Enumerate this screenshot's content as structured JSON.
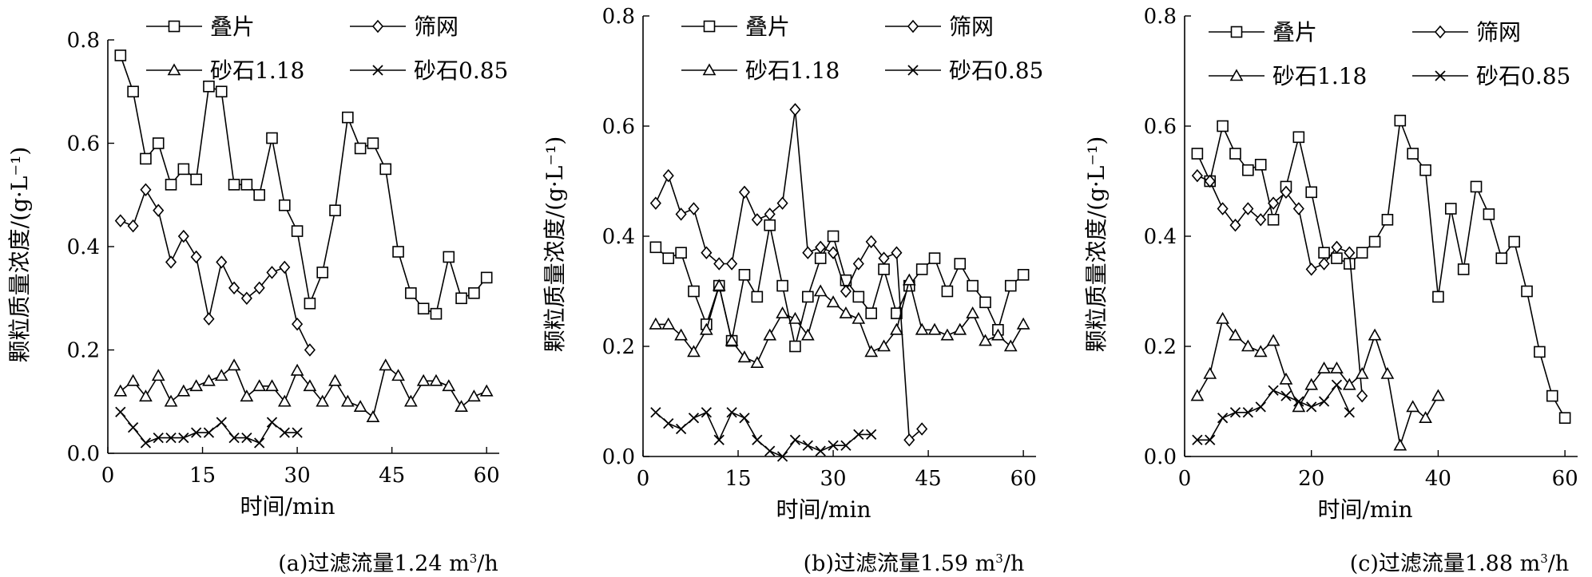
{
  "figure": {
    "captions": [
      {
        "prefix": "(a)过滤流量1.24 m",
        "sup": "3",
        "suffix": "/h"
      },
      {
        "prefix": "(b)过滤流量1.59 m",
        "sup": "3",
        "suffix": "/h"
      },
      {
        "prefix": "(c)过滤流量1.88 m",
        "sup": "3",
        "suffix": "/h"
      }
    ]
  },
  "chart_data": [
    {
      "type": "line",
      "xlabel": "时间/min",
      "ylabel": "颗粒质量浓度/(g·L⁻¹)",
      "xlim": [
        0,
        62
      ],
      "ylim": [
        0,
        0.8
      ],
      "xticks": [
        0,
        15,
        30,
        45,
        60
      ],
      "yticks": [
        0.0,
        0.2,
        0.4,
        0.6,
        0.8
      ],
      "legend_position": "top",
      "series": [
        {
          "name": "叠片",
          "marker": "square",
          "x": [
            2,
            4,
            6,
            8,
            10,
            12,
            14,
            16,
            18,
            20,
            22,
            24,
            26,
            28,
            30,
            32,
            34,
            36,
            38,
            40,
            42,
            44,
            46,
            48,
            50,
            52,
            54,
            56,
            58,
            60
          ],
          "y": [
            0.77,
            0.7,
            0.57,
            0.6,
            0.52,
            0.55,
            0.53,
            0.71,
            0.7,
            0.52,
            0.52,
            0.5,
            0.61,
            0.48,
            0.43,
            0.29,
            0.35,
            0.47,
            0.65,
            0.59,
            0.6,
            0.55,
            0.39,
            0.31,
            0.28,
            0.27,
            0.38,
            0.3,
            0.31,
            0.34
          ]
        },
        {
          "name": "筛网",
          "marker": "diamond",
          "x": [
            2,
            4,
            6,
            8,
            10,
            12,
            14,
            16,
            18,
            20,
            22,
            24,
            26,
            28,
            30,
            32
          ],
          "y": [
            0.45,
            0.44,
            0.51,
            0.47,
            0.37,
            0.42,
            0.38,
            0.26,
            0.37,
            0.32,
            0.3,
            0.32,
            0.35,
            0.36,
            0.25,
            0.2
          ]
        },
        {
          "name": "砂石1.18",
          "marker": "triangle",
          "x": [
            2,
            4,
            6,
            8,
            10,
            12,
            14,
            16,
            18,
            20,
            22,
            24,
            26,
            28,
            30,
            32,
            34,
            36,
            38,
            40,
            42,
            44,
            46,
            48,
            50,
            52,
            54,
            56,
            58,
            60
          ],
          "y": [
            0.12,
            0.14,
            0.11,
            0.15,
            0.1,
            0.12,
            0.13,
            0.14,
            0.15,
            0.17,
            0.11,
            0.13,
            0.13,
            0.1,
            0.16,
            0.13,
            0.1,
            0.14,
            0.1,
            0.09,
            0.07,
            0.17,
            0.15,
            0.1,
            0.14,
            0.14,
            0.13,
            0.09,
            0.11,
            0.12
          ]
        },
        {
          "name": "砂石0.85",
          "marker": "x",
          "x": [
            2,
            4,
            6,
            8,
            10,
            12,
            14,
            16,
            18,
            20,
            22,
            24,
            26,
            28,
            30
          ],
          "y": [
            0.08,
            0.05,
            0.02,
            0.03,
            0.03,
            0.03,
            0.04,
            0.04,
            0.06,
            0.03,
            0.03,
            0.02,
            0.06,
            0.04,
            0.04
          ]
        }
      ]
    },
    {
      "type": "line",
      "xlabel": "时间/min",
      "ylabel": "颗粒质量浓度/(g·L⁻¹)",
      "xlim": [
        0,
        62
      ],
      "ylim": [
        0,
        0.8
      ],
      "xticks": [
        0,
        15,
        30,
        45,
        60
      ],
      "yticks": [
        0.0,
        0.2,
        0.4,
        0.6,
        0.8
      ],
      "legend_position": "top",
      "series": [
        {
          "name": "叠片",
          "marker": "square",
          "x": [
            2,
            4,
            6,
            8,
            10,
            12,
            14,
            16,
            18,
            20,
            22,
            24,
            26,
            28,
            30,
            32,
            34,
            36,
            38,
            40,
            42,
            44,
            46,
            48,
            50,
            52,
            54,
            56,
            58,
            60
          ],
          "y": [
            0.38,
            0.36,
            0.37,
            0.3,
            0.24,
            0.31,
            0.21,
            0.33,
            0.29,
            0.42,
            0.31,
            0.2,
            0.29,
            0.36,
            0.4,
            0.32,
            0.29,
            0.26,
            0.34,
            0.26,
            0.31,
            0.34,
            0.36,
            0.3,
            0.35,
            0.31,
            0.28,
            0.23,
            0.31,
            0.33
          ]
        },
        {
          "name": "筛网",
          "marker": "diamond",
          "x": [
            2,
            4,
            6,
            8,
            10,
            12,
            14,
            16,
            18,
            20,
            22,
            24,
            26,
            28,
            30,
            32,
            34,
            36,
            38,
            40,
            42,
            44
          ],
          "y": [
            0.46,
            0.51,
            0.44,
            0.45,
            0.37,
            0.35,
            0.35,
            0.48,
            0.43,
            0.44,
            0.46,
            0.63,
            0.37,
            0.38,
            0.37,
            0.3,
            0.35,
            0.39,
            0.36,
            0.37,
            0.03,
            0.05
          ]
        },
        {
          "name": "砂石1.18",
          "marker": "triangle",
          "x": [
            2,
            4,
            6,
            8,
            10,
            12,
            14,
            16,
            18,
            20,
            22,
            24,
            26,
            28,
            30,
            32,
            34,
            36,
            38,
            40,
            42,
            44,
            46,
            48,
            50,
            52,
            54,
            56,
            58,
            60
          ],
          "y": [
            0.24,
            0.24,
            0.22,
            0.19,
            0.23,
            0.31,
            0.21,
            0.18,
            0.17,
            0.22,
            0.26,
            0.25,
            0.22,
            0.3,
            0.28,
            0.26,
            0.25,
            0.19,
            0.2,
            0.23,
            0.32,
            0.23,
            0.23,
            0.22,
            0.23,
            0.26,
            0.21,
            0.22,
            0.2,
            0.24
          ]
        },
        {
          "name": "砂石0.85",
          "marker": "x",
          "x": [
            2,
            4,
            6,
            8,
            10,
            12,
            14,
            16,
            18,
            20,
            22,
            24,
            26,
            28,
            30,
            32,
            34,
            36
          ],
          "y": [
            0.08,
            0.06,
            0.05,
            0.07,
            0.08,
            0.03,
            0.08,
            0.07,
            0.03,
            0.01,
            0.0,
            0.03,
            0.02,
            0.01,
            0.02,
            0.02,
            0.04,
            0.04
          ]
        }
      ]
    },
    {
      "type": "line",
      "xlabel": "时间/min",
      "ylabel": "颗粒质量浓度/(g·L⁻¹)",
      "xlim": [
        0,
        62
      ],
      "ylim": [
        0,
        0.8
      ],
      "xticks": [
        0,
        20,
        40,
        60
      ],
      "yticks": [
        0.0,
        0.2,
        0.4,
        0.6,
        0.8
      ],
      "legend_position": "top",
      "series": [
        {
          "name": "叠片",
          "marker": "square",
          "x": [
            2,
            4,
            6,
            8,
            10,
            12,
            14,
            16,
            18,
            20,
            22,
            24,
            26,
            28,
            30,
            32,
            34,
            36,
            38,
            40,
            42,
            44,
            46,
            48,
            50,
            52,
            54,
            56,
            58,
            60
          ],
          "y": [
            0.55,
            0.5,
            0.6,
            0.55,
            0.52,
            0.53,
            0.43,
            0.49,
            0.58,
            0.48,
            0.37,
            0.36,
            0.35,
            0.37,
            0.39,
            0.43,
            0.61,
            0.55,
            0.52,
            0.29,
            0.45,
            0.34,
            0.49,
            0.44,
            0.36,
            0.39,
            0.3,
            0.19,
            0.11,
            0.07
          ]
        },
        {
          "name": "筛网",
          "marker": "diamond",
          "x": [
            2,
            4,
            6,
            8,
            10,
            12,
            14,
            16,
            18,
            20,
            22,
            24,
            26,
            28
          ],
          "y": [
            0.51,
            0.5,
            0.45,
            0.42,
            0.45,
            0.43,
            0.46,
            0.48,
            0.45,
            0.34,
            0.35,
            0.38,
            0.37,
            0.11
          ]
        },
        {
          "name": "砂石1.18",
          "marker": "triangle",
          "x": [
            2,
            4,
            6,
            8,
            10,
            12,
            14,
            16,
            18,
            20,
            22,
            24,
            26,
            28,
            30,
            32,
            34,
            36,
            38,
            40
          ],
          "y": [
            0.11,
            0.15,
            0.25,
            0.22,
            0.2,
            0.19,
            0.21,
            0.14,
            0.09,
            0.13,
            0.16,
            0.16,
            0.13,
            0.15,
            0.22,
            0.15,
            0.02,
            0.09,
            0.07,
            0.11
          ]
        },
        {
          "name": "砂石0.85",
          "marker": "x",
          "x": [
            2,
            4,
            6,
            8,
            10,
            12,
            14,
            16,
            18,
            20,
            22,
            24,
            26
          ],
          "y": [
            0.03,
            0.03,
            0.07,
            0.08,
            0.08,
            0.09,
            0.12,
            0.11,
            0.1,
            0.09,
            0.1,
            0.13,
            0.08
          ]
        }
      ]
    }
  ]
}
